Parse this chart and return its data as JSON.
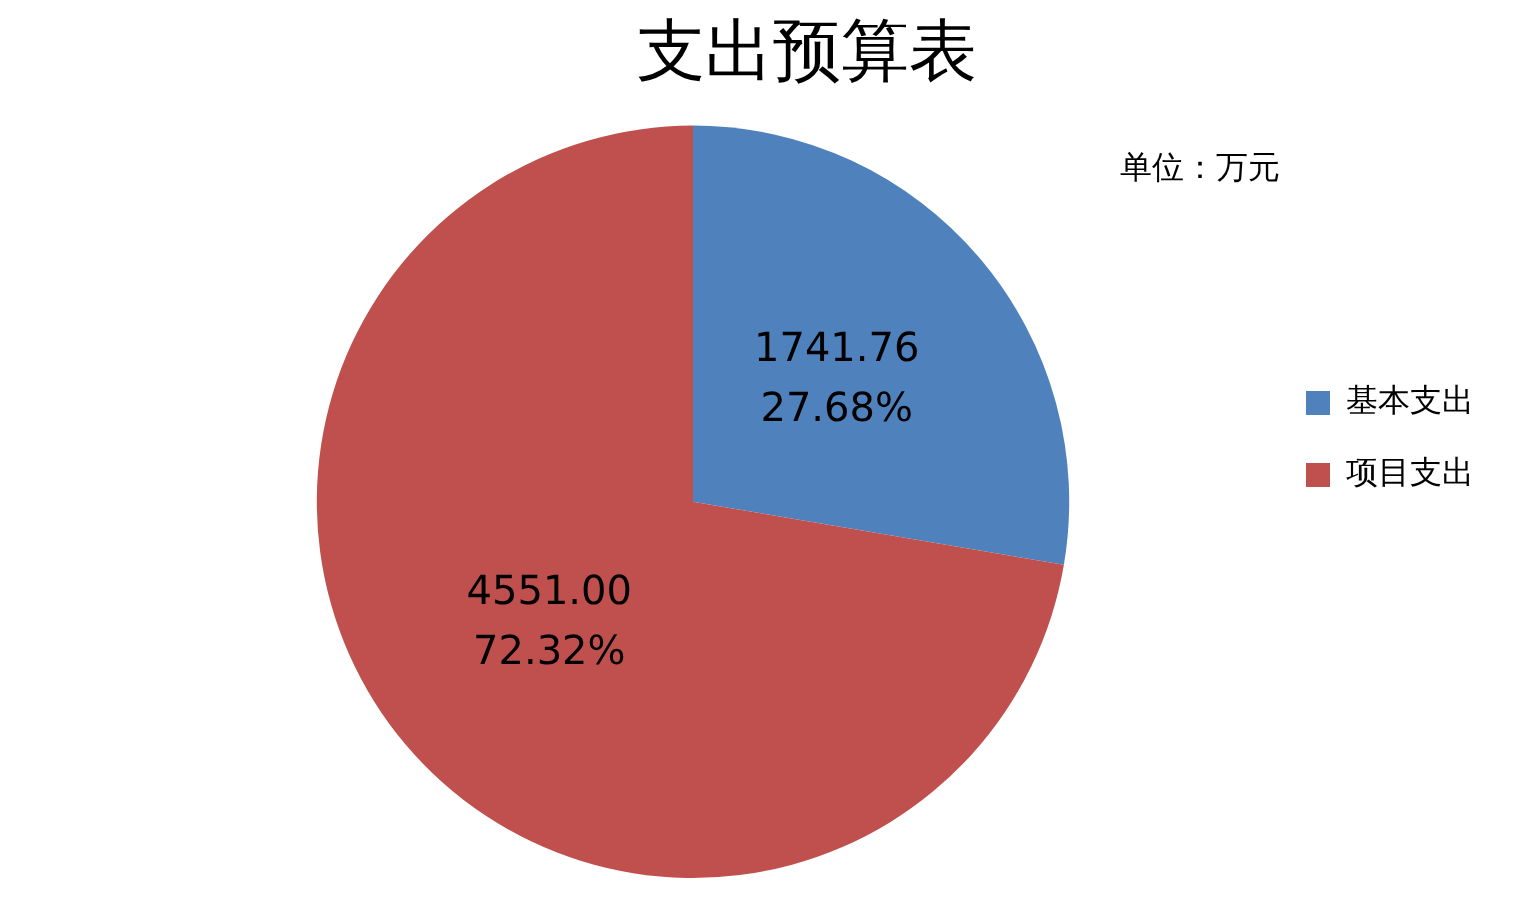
{
  "chart_data": {
    "type": "pie",
    "title": "支出预算表",
    "categories": [
      "基本支出",
      "项目支出"
    ],
    "values": [
      1741.76,
      4551.0
    ],
    "colors": [
      "#4f81bd",
      "#c0504d"
    ],
    "value_labels": [
      "1741.76\n27.68%",
      "4551.00\n72.32%"
    ],
    "legend": "right",
    "annotations": [
      "单位：万元"
    ]
  }
}
